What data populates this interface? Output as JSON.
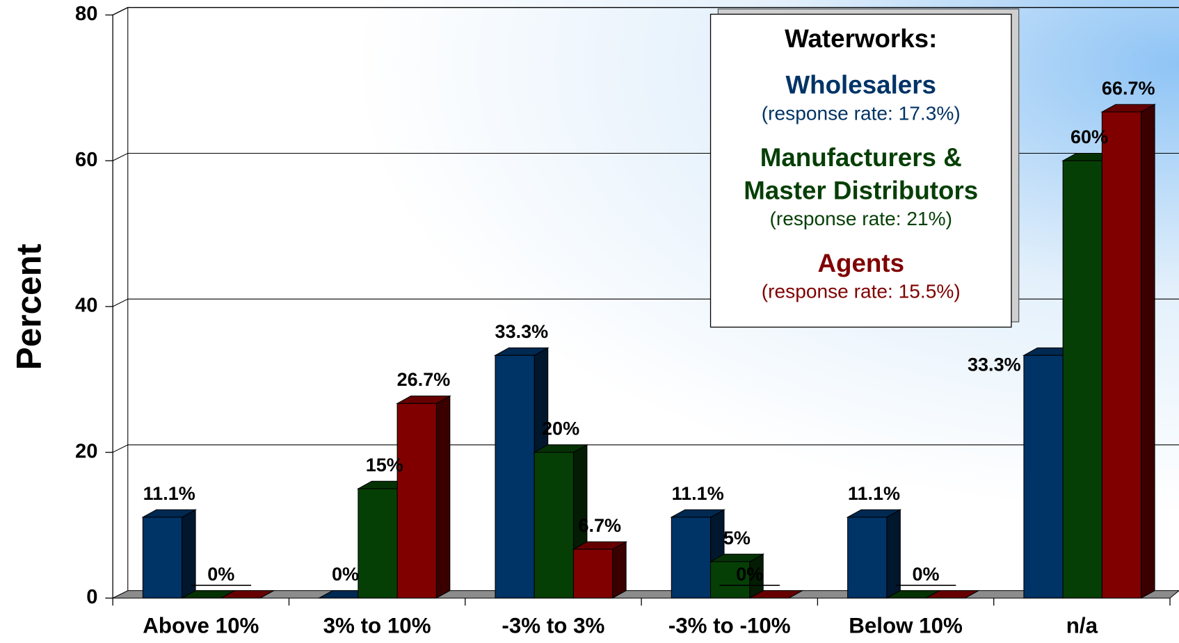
{
  "chart_data": {
    "type": "bar3d",
    "ylabel": "Percent",
    "categories": [
      "Above 10%",
      "3% to 10%",
      "-3% to 3%",
      "-3% to -10%",
      "Below 10%",
      "n/a"
    ],
    "legend_title": "Waterworks:",
    "series": [
      {
        "name": "Wholesalers",
        "response_rate": "(response rate: 17.3%)",
        "color": "#003366",
        "values": [
          11.1,
          0,
          33.3,
          11.1,
          11.1,
          33.3
        ],
        "value_labels": [
          "11.1%",
          "0%",
          "33.3%",
          "11.1%",
          "11.1%",
          "33.3%"
        ]
      },
      {
        "name": "Manufacturers & Master Distributors",
        "response_rate": "(response rate: 21%)",
        "color": "#063f06",
        "values": [
          0,
          15,
          20,
          5,
          0,
          60
        ],
        "value_labels": [
          null,
          "15%",
          "20%",
          "5%",
          null,
          "60%"
        ]
      },
      {
        "name": "Agents",
        "response_rate": "(response rate: 15.5%)",
        "color": "#800000",
        "values": [
          0,
          26.7,
          6.7,
          0,
          0,
          66.7
        ],
        "value_labels": [
          "0%",
          "26.7%",
          "6.7%",
          "0%",
          "0%",
          "66.7%"
        ]
      }
    ],
    "ylim": [
      0,
      80
    ],
    "yticks": [
      0,
      20,
      40,
      60,
      80
    ],
    "grid": true
  }
}
